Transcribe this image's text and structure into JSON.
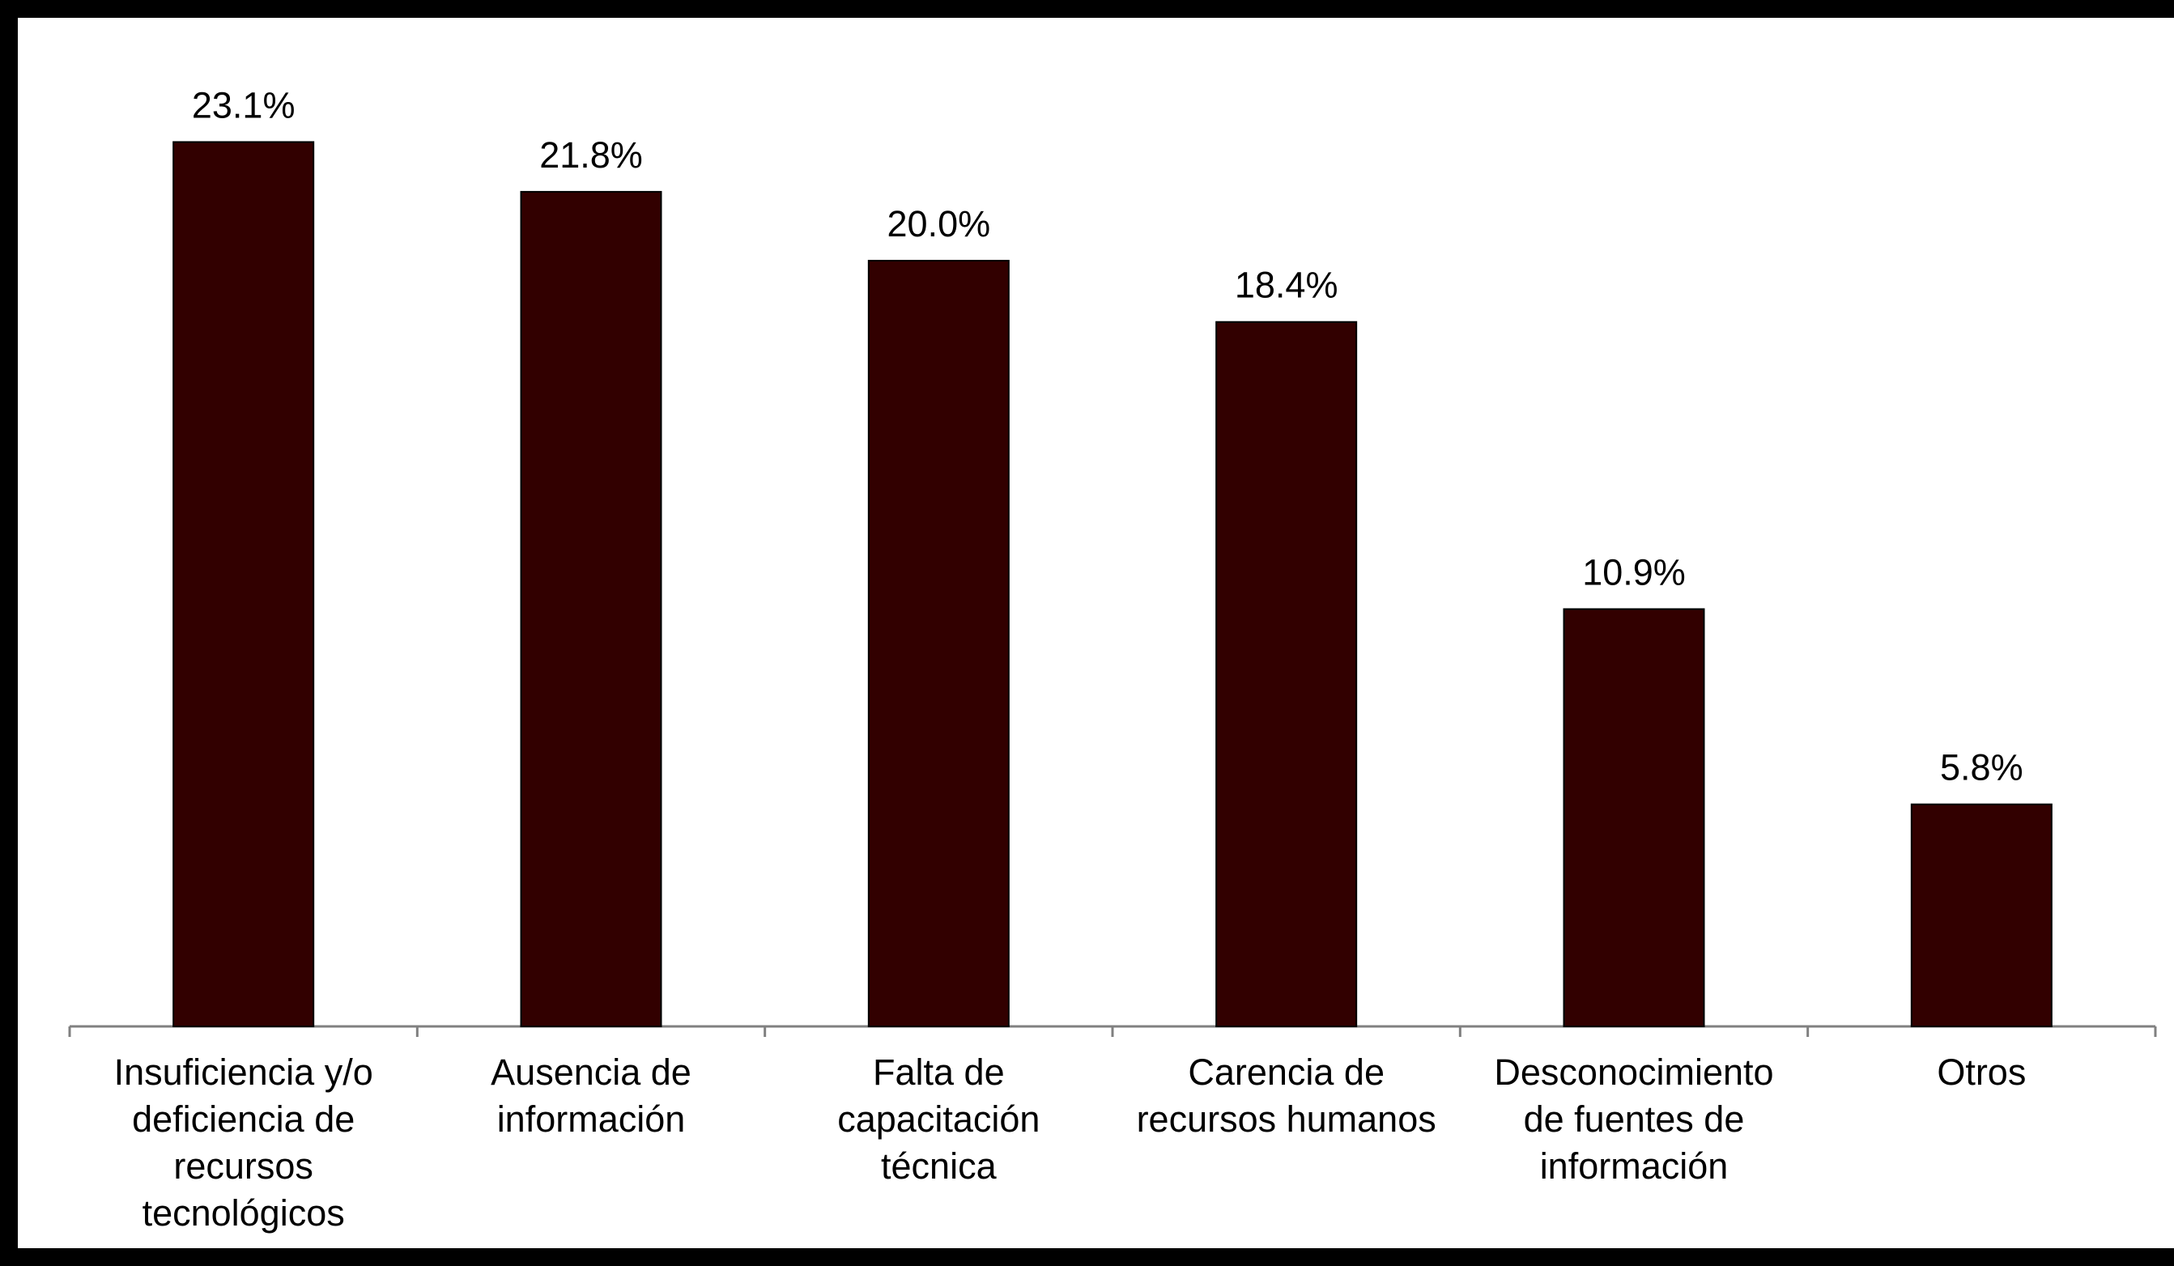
{
  "chart_data": {
    "type": "bar",
    "title": "",
    "xlabel": "",
    "ylabel": "",
    "ylim": [
      0,
      25.9
    ],
    "grid": false,
    "legend": "none",
    "bar_color": "#320000",
    "categories": [
      "Insuficiencia y/o deficiencia de recursos tecnológicos",
      "Ausencia de información",
      "Falta de capacitación técnica",
      "Carencia de recursos humanos",
      "Desconocimiento de fuentes de información",
      "Otros"
    ],
    "category_lines": [
      [
        "Insuficiencia y/o",
        "deficiencia de",
        "recursos",
        "tecnológicos"
      ],
      [
        "Ausencia de",
        "información"
      ],
      [
        "Falta de",
        "capacitación",
        "técnica"
      ],
      [
        "Carencia de",
        "recursos humanos"
      ],
      [
        "Desconocimiento",
        "de fuentes de",
        "información"
      ],
      [
        "Otros"
      ]
    ],
    "values": [
      23.1,
      21.8,
      20.0,
      18.4,
      10.9,
      5.8
    ],
    "value_labels": [
      "23.1%",
      "21.8%",
      "20.0%",
      "18.4%",
      "10.9%",
      "5.8%"
    ]
  }
}
